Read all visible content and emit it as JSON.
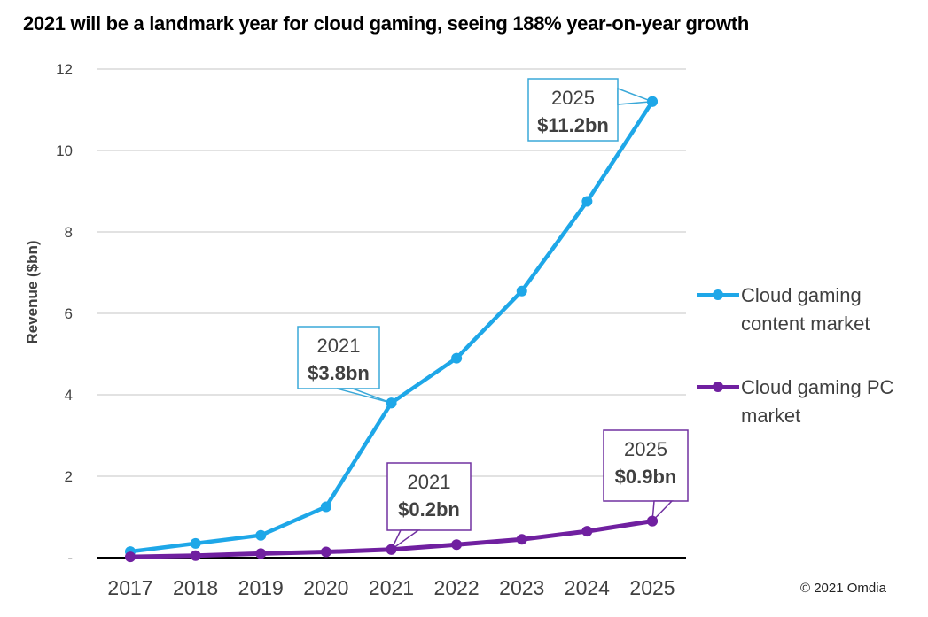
{
  "title": "2021 will be a landmark year for cloud gaming, seeing 188% year-on-year growth",
  "copyright": "© 2021 Omdia",
  "chart_data": {
    "type": "line",
    "title": "2021 will be a landmark year for cloud gaming, seeing 188% year-on-year growth",
    "xlabel": "",
    "ylabel": "Revenue ($bn)",
    "x": [
      "2017",
      "2018",
      "2019",
      "2020",
      "2021",
      "2022",
      "2023",
      "2024",
      "2025"
    ],
    "ylim": [
      0,
      12
    ],
    "yticks": [
      0,
      2,
      4,
      6,
      8,
      10,
      12
    ],
    "ytick_labels": [
      "-",
      "2",
      "4",
      "6",
      "8",
      "10",
      "12"
    ],
    "grid": true,
    "legend_position": "right",
    "series": [
      {
        "name": "Cloud gaming content market",
        "color": "#1ea7e8",
        "values": [
          0.15,
          0.35,
          0.55,
          1.25,
          3.8,
          4.9,
          6.55,
          8.75,
          11.2
        ]
      },
      {
        "name": "Cloud gaming PC market",
        "color": "#7020a0",
        "values": [
          0.02,
          0.05,
          0.1,
          0.14,
          0.2,
          0.32,
          0.45,
          0.65,
          0.9
        ]
      }
    ],
    "annotations": [
      {
        "series": 0,
        "index": 4,
        "year": "2021",
        "value": "$3.8bn"
      },
      {
        "series": 0,
        "index": 8,
        "year": "2025",
        "value": "$11.2bn"
      },
      {
        "series": 1,
        "index": 4,
        "year": "2021",
        "value": "$0.2bn"
      },
      {
        "series": 1,
        "index": 8,
        "year": "2025",
        "value": "$0.9bn"
      }
    ]
  }
}
